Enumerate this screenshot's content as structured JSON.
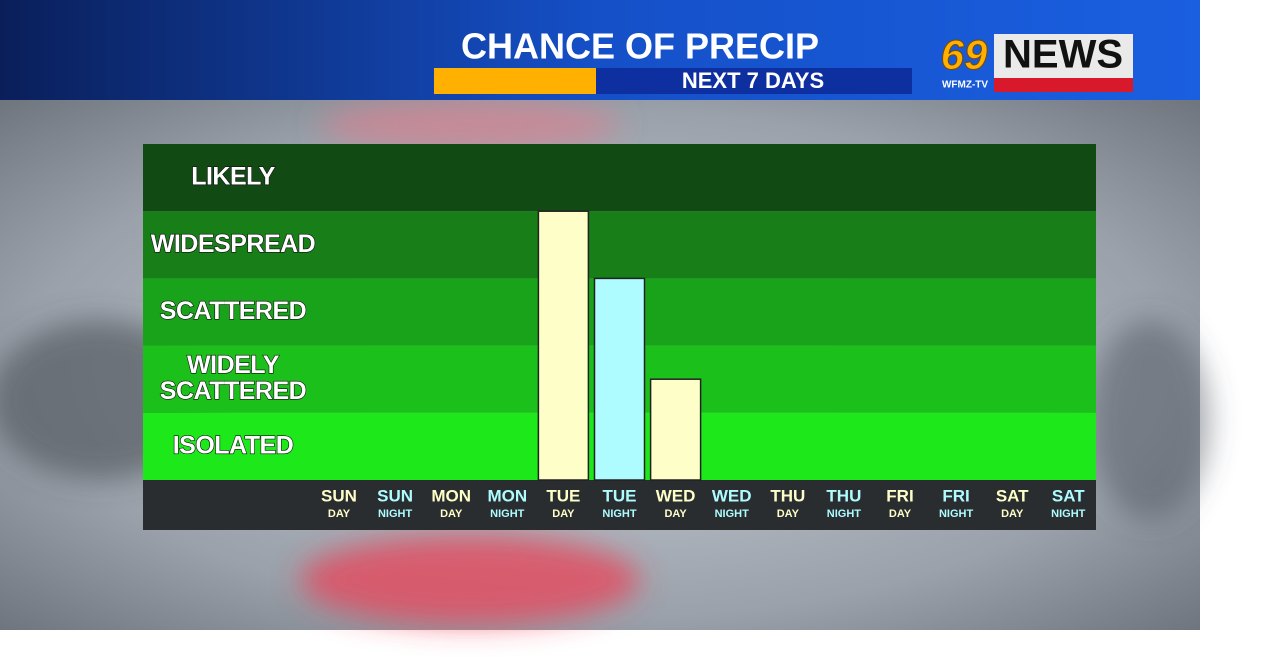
{
  "chart_data": {
    "type": "bar",
    "title": "CHANCE OF PRECIP",
    "subtitle": "NEXT 7 DAYS",
    "categories": [
      "SUN",
      "SUN",
      "MON",
      "MON",
      "TUE",
      "TUE",
      "WED",
      "WED",
      "THU",
      "THU",
      "FRI",
      "FRI",
      "SAT",
      "SAT"
    ],
    "day_parts": [
      "DAY",
      "NIGHT",
      "DAY",
      "NIGHT",
      "DAY",
      "NIGHT",
      "DAY",
      "NIGHT",
      "DAY",
      "NIGHT",
      "DAY",
      "NIGHT",
      "DAY",
      "NIGHT"
    ],
    "values": [
      0,
      0,
      0,
      0,
      4,
      3,
      1.5,
      0,
      0,
      0,
      0,
      0,
      0,
      0
    ],
    "colors": [
      "#fefec8",
      "#aefcff",
      "#fefec8",
      "#aefcff",
      "#fefec8",
      "#aefcff",
      "#fefec8",
      "#aefcff",
      "#fefec8",
      "#aefcff",
      "#fefec8",
      "#aefcff",
      "#fefec8",
      "#aefcff"
    ],
    "ylim": [
      0,
      5
    ],
    "yticks": [
      {
        "value": 0.5,
        "label": "ISOLATED"
      },
      {
        "value": 1.5,
        "label": "WIDELY\nSCATTERED"
      },
      {
        "value": 2.5,
        "label": "SCATTERED"
      },
      {
        "value": 3.5,
        "label": "WIDESPREAD"
      },
      {
        "value": 4.5,
        "label": "LIKELY"
      }
    ],
    "band_colors": [
      "#1de81a",
      "#1bc11a",
      "#19a31a",
      "#177e18",
      "#124a14"
    ]
  },
  "logo": {
    "number": "69",
    "name": "NEWS",
    "station": "WFMZ-TV"
  }
}
